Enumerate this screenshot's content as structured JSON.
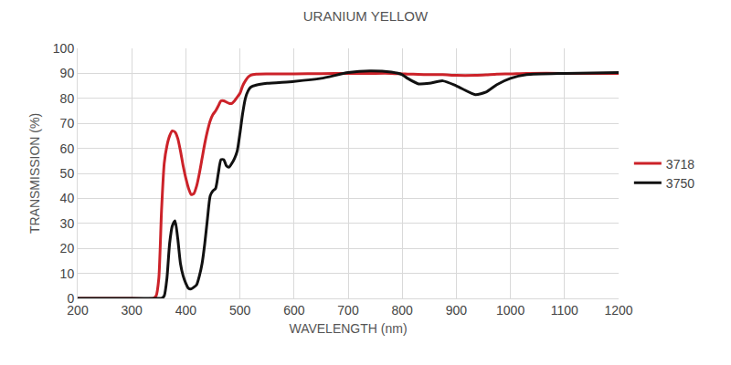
{
  "chart_data": {
    "type": "line",
    "title": "URANIUM YELLOW",
    "x_label": "WAVELENGTH (nm)",
    "y_label": "TRANSMISSION (%)",
    "x": [
      200,
      300,
      340,
      345,
      350,
      355,
      360,
      365,
      370,
      375,
      380,
      385,
      390,
      395,
      400,
      405,
      410,
      415,
      420,
      425,
      430,
      435,
      440,
      445,
      450,
      455,
      460,
      465,
      470,
      475,
      480,
      485,
      490,
      495,
      500,
      505,
      510,
      515,
      520,
      530,
      550,
      600,
      650,
      700,
      740,
      780,
      800,
      810,
      830,
      850,
      875,
      900,
      935,
      955,
      975,
      1000,
      1030,
      1100,
      1200
    ],
    "series": [
      {
        "name": "3718",
        "color": "#cc2229",
        "values": [
          0,
          0,
          0,
          1,
          8,
          35,
          54,
          61,
          65,
          67,
          66.5,
          64,
          59,
          53,
          48,
          44,
          41.5,
          42,
          45,
          50,
          56,
          62,
          67,
          71,
          73.5,
          75,
          77,
          79,
          79,
          78.5,
          78,
          78,
          79,
          80.5,
          82,
          85,
          87,
          88.5,
          89.3,
          89.7,
          89.8,
          89.8,
          89.9,
          90,
          90,
          90,
          89.8,
          89.7,
          89.6,
          89.5,
          89.5,
          89.2,
          89.2,
          89.4,
          89.7,
          89.8,
          90,
          90,
          90
        ]
      },
      {
        "name": "3750",
        "color": "#111111",
        "values": [
          0,
          0,
          0,
          0,
          0,
          0,
          1,
          8,
          22,
          29,
          31,
          24,
          14,
          9,
          6,
          4,
          3.8,
          4.5,
          5.5,
          9,
          14,
          22,
          32,
          41,
          43,
          44,
          50,
          55.5,
          55.5,
          53,
          52.5,
          54,
          56,
          59,
          66,
          74,
          80,
          83,
          84.5,
          85.3,
          86,
          86.8,
          88,
          90.3,
          91,
          90.5,
          89.5,
          88,
          85.8,
          86,
          87,
          85,
          81.5,
          82.5,
          85.5,
          88,
          89.5,
          90,
          90.3
        ]
      }
    ],
    "xlim": [
      200,
      1200
    ],
    "xticks": [
      200,
      300,
      400,
      500,
      600,
      700,
      800,
      900,
      1000,
      1100,
      1200
    ],
    "ylim": [
      0,
      100
    ],
    "yticks": [
      0,
      10,
      20,
      30,
      40,
      50,
      60,
      70,
      80,
      90,
      100
    ],
    "grid": true,
    "legend": "right"
  }
}
